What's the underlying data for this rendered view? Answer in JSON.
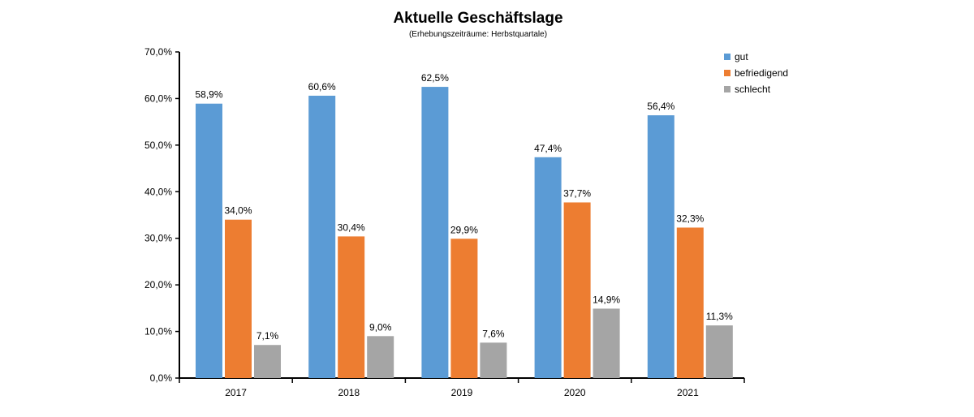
{
  "chart_data": {
    "type": "bar",
    "title": "Aktuelle Geschäftslage",
    "subtitle": "(Erhebungszeiträume: Herbstquartale)",
    "xlabel": "",
    "ylabel": "",
    "categories": [
      "2017",
      "2018",
      "2019",
      "2020",
      "2021"
    ],
    "ylim": [
      0,
      70
    ],
    "yticks": [
      0,
      10,
      20,
      30,
      40,
      50,
      60,
      70
    ],
    "ytick_labels": [
      "0,0%",
      "10,0%",
      "20,0%",
      "30,0%",
      "40,0%",
      "50,0%",
      "60,0%",
      "70,0%"
    ],
    "grid": false,
    "legend_position": "top-right",
    "series": [
      {
        "name": "gut",
        "color": "#5b9bd5",
        "values": [
          58.9,
          60.6,
          62.5,
          47.4,
          56.4
        ],
        "labels": [
          "58,9%",
          "60,6%",
          "62,5%",
          "47,4%",
          "56,4%"
        ]
      },
      {
        "name": "befriedigend",
        "color": "#ed7d31",
        "values": [
          34.0,
          30.4,
          29.9,
          37.7,
          32.3
        ],
        "labels": [
          "34,0%",
          "30,4%",
          "29,9%",
          "37,7%",
          "32,3%"
        ]
      },
      {
        "name": "schlecht",
        "color": "#a5a5a5",
        "values": [
          7.1,
          9.0,
          7.6,
          14.9,
          11.3
        ],
        "labels": [
          "7,1%",
          "9,0%",
          "7,6%",
          "14,9%",
          "11,3%"
        ]
      }
    ]
  }
}
